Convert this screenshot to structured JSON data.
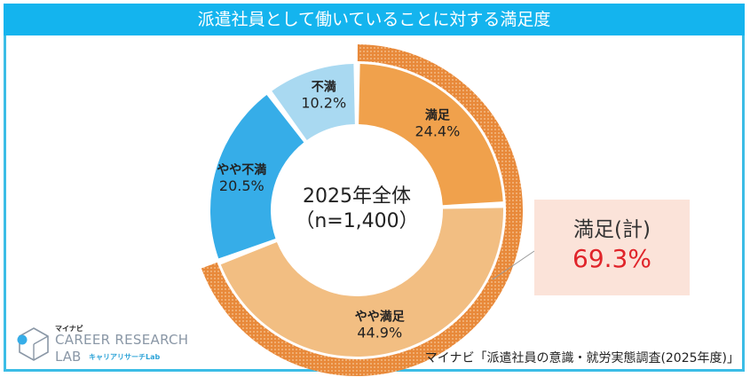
{
  "header": {
    "title": "派遣社員として働いていることに対する満足度"
  },
  "center": {
    "line1": "2025年全体",
    "line2": "（n=1,400）"
  },
  "callout": {
    "label": "満足(計)",
    "value": "69.3%"
  },
  "source": "マイナビ「派遣社員の意識・就労実態調査(2025年度)」",
  "logo": {
    "kana": "マイナビ",
    "line1": "CAREER RESEARCH",
    "line2": "LAB",
    "sub": "キャリアリサーチLab"
  },
  "colors": {
    "header": "#14b4ee",
    "satisfied": "#f0a14c",
    "somewhat_satisfied": "#f2be82",
    "somewhat_dissatisfied": "#36ade8",
    "dissatisfied": "#a9d9f1",
    "outer_ring": "#e88a3c",
    "highlight": "#e0242a"
  },
  "chart_data": {
    "type": "pie",
    "subtype": "donut",
    "title": "派遣社員として働いていることに対する満足度",
    "center_label": "2025年全体（n=1,400）",
    "slices": [
      {
        "label": "満足",
        "value": 24.4,
        "display": "24.4%",
        "color": "#f0a14c"
      },
      {
        "label": "やや満足",
        "value": 44.9,
        "display": "44.9%",
        "color": "#f2be82"
      },
      {
        "label": "やや不満",
        "value": 20.5,
        "display": "20.5%",
        "color": "#36ade8"
      },
      {
        "label": "不満",
        "value": 10.2,
        "display": "10.2%",
        "color": "#a9d9f1"
      }
    ],
    "outer_ring": {
      "label": "満足(計)",
      "value": 69.3,
      "display": "69.3%"
    }
  }
}
